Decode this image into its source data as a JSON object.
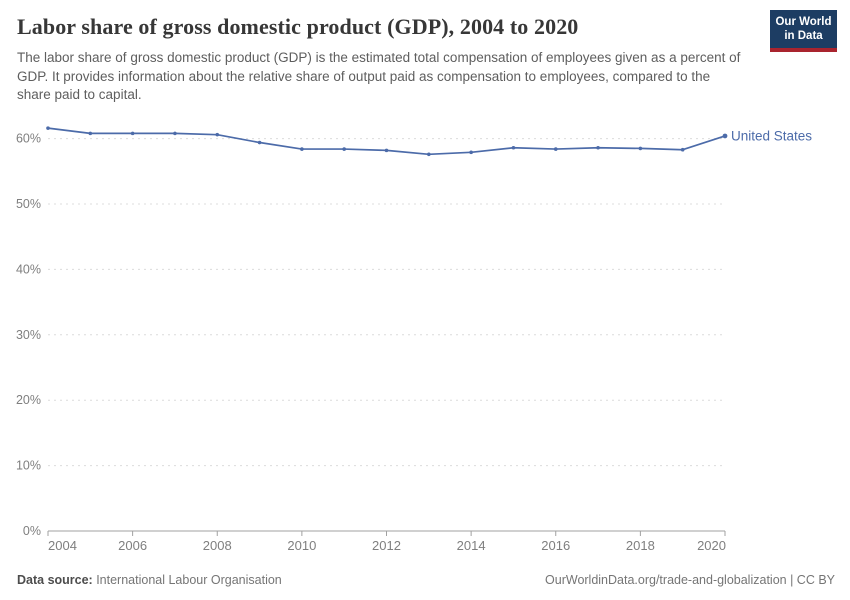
{
  "header": {
    "title": "Labor share of gross domestic product (GDP), 2004 to 2020",
    "subtitle": "The labor share of gross domestic product (GDP) is the estimated total compensation of employees given as a percent of GDP. It provides information about the relative share of output paid as compensation to employees, compared to the share paid to capital.",
    "logo": {
      "line1": "Our World",
      "line2": "in Data"
    }
  },
  "chart_data": {
    "type": "line",
    "title": "Labor share of gross domestic product (GDP), 2004 to 2020",
    "x": [
      2004,
      2005,
      2006,
      2007,
      2008,
      2009,
      2010,
      2011,
      2012,
      2013,
      2014,
      2015,
      2016,
      2017,
      2018,
      2019,
      2020
    ],
    "series": [
      {
        "name": "United States",
        "color": "#4c6ba9",
        "values": [
          61.6,
          60.8,
          60.8,
          60.8,
          60.6,
          59.4,
          58.4,
          58.4,
          58.2,
          57.6,
          57.9,
          58.6,
          58.4,
          58.6,
          58.5,
          58.3,
          60.4
        ]
      }
    ],
    "xticks": [
      2004,
      2006,
      2008,
      2010,
      2012,
      2014,
      2016,
      2018,
      2020
    ],
    "yticks": [
      0,
      10,
      20,
      30,
      40,
      50,
      60
    ],
    "ytick_suffix": "%",
    "ylim": [
      0,
      63
    ],
    "grid": true,
    "legend": "line-end-label",
    "colors": {
      "grid": "#dcdcdc",
      "axis": "#a1a1a1",
      "tick_label": "#7f7f7f"
    }
  },
  "footer": {
    "source_label": "Data source:",
    "source_value": " International Labour Organisation",
    "credit": "OurWorldinData.org/trade-and-globalization | CC BY"
  }
}
